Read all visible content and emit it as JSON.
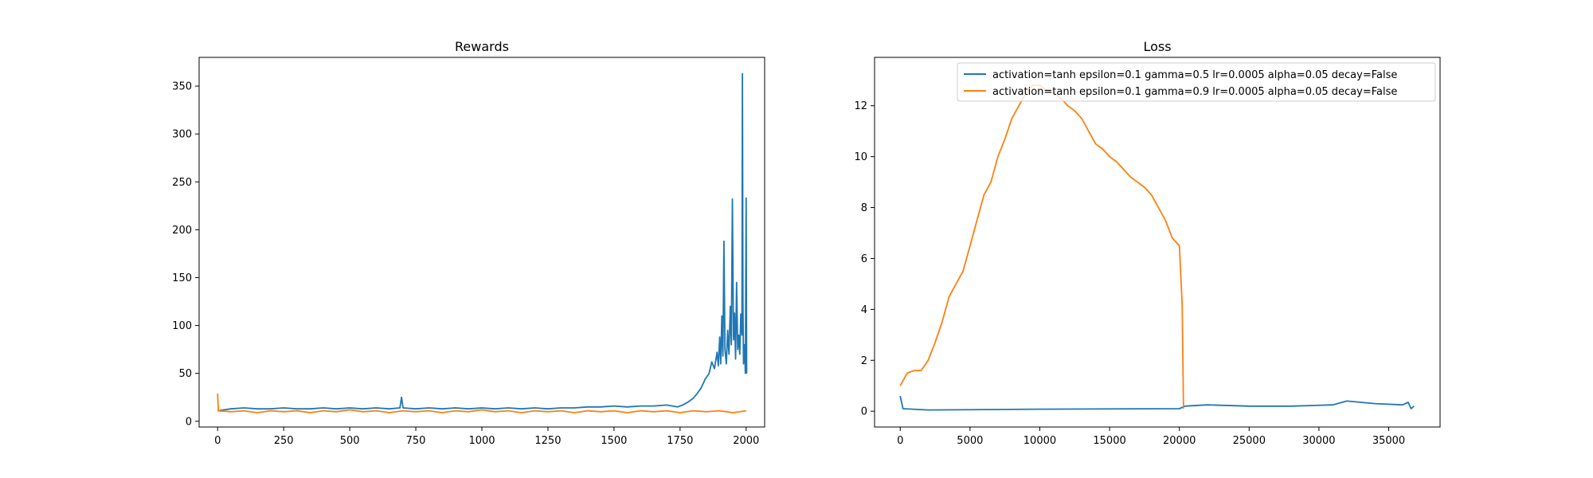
{
  "chart_data": [
    {
      "type": "line",
      "title": "Rewards",
      "xlabel": "",
      "ylabel": "",
      "xlim": [
        -70,
        2070
      ],
      "ylim": [
        -6,
        380
      ],
      "xticks": [
        0,
        250,
        500,
        750,
        1000,
        1250,
        1500,
        1750,
        2000
      ],
      "yticks": [
        0,
        50,
        100,
        150,
        200,
        250,
        300,
        350
      ],
      "grid": false,
      "series": [
        {
          "color": "#1f77b4",
          "points": [
            [
              0,
              11
            ],
            [
              50,
              13
            ],
            [
              100,
              14
            ],
            [
              150,
              13
            ],
            [
              200,
              13
            ],
            [
              250,
              14
            ],
            [
              300,
              13
            ],
            [
              350,
              13
            ],
            [
              400,
              14
            ],
            [
              450,
              13
            ],
            [
              500,
              14
            ],
            [
              550,
              13
            ],
            [
              600,
              14
            ],
            [
              650,
              13
            ],
            [
              690,
              14
            ],
            [
              696,
              25
            ],
            [
              702,
              14
            ],
            [
              750,
              13
            ],
            [
              800,
              14
            ],
            [
              850,
              13
            ],
            [
              900,
              14
            ],
            [
              950,
              13
            ],
            [
              1000,
              14
            ],
            [
              1050,
              13
            ],
            [
              1100,
              14
            ],
            [
              1150,
              13
            ],
            [
              1200,
              14
            ],
            [
              1250,
              13
            ],
            [
              1300,
              14
            ],
            [
              1350,
              14
            ],
            [
              1400,
              15
            ],
            [
              1450,
              15
            ],
            [
              1500,
              16
            ],
            [
              1550,
              15
            ],
            [
              1600,
              16
            ],
            [
              1650,
              16
            ],
            [
              1700,
              17
            ],
            [
              1740,
              15
            ],
            [
              1760,
              17
            ],
            [
              1780,
              20
            ],
            [
              1800,
              24
            ],
            [
              1815,
              29
            ],
            [
              1830,
              35
            ],
            [
              1845,
              44
            ],
            [
              1860,
              50
            ],
            [
              1870,
              62
            ],
            [
              1880,
              55
            ],
            [
              1890,
              72
            ],
            [
              1895,
              58
            ],
            [
              1900,
              88
            ],
            [
              1904,
              60
            ],
            [
              1908,
              110
            ],
            [
              1912,
              68
            ],
            [
              1916,
              188
            ],
            [
              1920,
              75
            ],
            [
              1925,
              60
            ],
            [
              1930,
              95
            ],
            [
              1935,
              70
            ],
            [
              1940,
              120
            ],
            [
              1944,
              80
            ],
            [
              1948,
              232
            ],
            [
              1952,
              85
            ],
            [
              1956,
              113
            ],
            [
              1960,
              65
            ],
            [
              1964,
              145
            ],
            [
              1968,
              75
            ],
            [
              1972,
              90
            ],
            [
              1976,
              70
            ],
            [
              1980,
              112
            ],
            [
              1984,
              90
            ],
            [
              1986,
              363
            ],
            [
              1988,
              120
            ],
            [
              1990,
              60
            ],
            [
              1994,
              80
            ],
            [
              1997,
              50
            ],
            [
              2000,
              233
            ],
            [
              2002,
              50
            ]
          ]
        },
        {
          "color": "#ff7f0e",
          "points": [
            [
              0,
              29
            ],
            [
              3,
              11
            ],
            [
              50,
              10
            ],
            [
              100,
              11
            ],
            [
              150,
              9
            ],
            [
              200,
              11
            ],
            [
              250,
              10
            ],
            [
              300,
              11
            ],
            [
              350,
              9
            ],
            [
              400,
              11
            ],
            [
              450,
              10
            ],
            [
              500,
              12
            ],
            [
              550,
              10
            ],
            [
              600,
              11
            ],
            [
              650,
              9
            ],
            [
              700,
              11
            ],
            [
              750,
              10
            ],
            [
              800,
              11
            ],
            [
              850,
              9
            ],
            [
              900,
              11
            ],
            [
              950,
              10
            ],
            [
              1000,
              12
            ],
            [
              1050,
              10
            ],
            [
              1100,
              11
            ],
            [
              1150,
              9
            ],
            [
              1200,
              11
            ],
            [
              1250,
              10
            ],
            [
              1300,
              11
            ],
            [
              1350,
              9
            ],
            [
              1400,
              11
            ],
            [
              1450,
              10
            ],
            [
              1500,
              11
            ],
            [
              1550,
              9
            ],
            [
              1600,
              11
            ],
            [
              1650,
              10
            ],
            [
              1700,
              11
            ],
            [
              1750,
              9
            ],
            [
              1800,
              11
            ],
            [
              1850,
              10
            ],
            [
              1900,
              11
            ],
            [
              1950,
              9
            ],
            [
              2000,
              11
            ]
          ]
        }
      ]
    },
    {
      "type": "line",
      "title": "Loss",
      "xlabel": "",
      "ylabel": "",
      "xlim": [
        -1840,
        38680
      ],
      "ylim": [
        -0.62,
        13.9
      ],
      "xticks": [
        0,
        5000,
        10000,
        15000,
        20000,
        25000,
        30000,
        35000
      ],
      "yticks": [
        0,
        2,
        4,
        6,
        8,
        10,
        12
      ],
      "grid": false,
      "legend": {
        "position": "top-right",
        "entries": [
          {
            "label": "activation=tanh epsilon=0.1 gamma=0.5 lr=0.0005 alpha=0.05 decay=False",
            "color": "#1f77b4"
          },
          {
            "label": "activation=tanh epsilon=0.1 gamma=0.9 lr=0.0005 alpha=0.05 decay=False",
            "color": "#ff7f0e"
          }
        ]
      },
      "series": [
        {
          "color": "#1f77b4",
          "points": [
            [
              0,
              0.6
            ],
            [
              200,
              0.1
            ],
            [
              2000,
              0.05
            ],
            [
              10000,
              0.08
            ],
            [
              20000,
              0.1
            ],
            [
              20400,
              0.2
            ],
            [
              22000,
              0.25
            ],
            [
              25000,
              0.2
            ],
            [
              28000,
              0.2
            ],
            [
              31000,
              0.25
            ],
            [
              32000,
              0.4
            ],
            [
              34000,
              0.3
            ],
            [
              36000,
              0.25
            ],
            [
              36400,
              0.35
            ],
            [
              36600,
              0.1
            ],
            [
              36800,
              0.2
            ]
          ]
        },
        {
          "color": "#ff7f0e",
          "points": [
            [
              0,
              1.0
            ],
            [
              500,
              1.5
            ],
            [
              1000,
              1.6
            ],
            [
              1500,
              1.6
            ],
            [
              2000,
              2.0
            ],
            [
              2500,
              2.7
            ],
            [
              3000,
              3.5
            ],
            [
              3500,
              4.5
            ],
            [
              4000,
              5.0
            ],
            [
              4500,
              5.5
            ],
            [
              5000,
              6.5
            ],
            [
              5500,
              7.5
            ],
            [
              6000,
              8.5
            ],
            [
              6500,
              9.0
            ],
            [
              7000,
              10.0
            ],
            [
              7500,
              10.7
            ],
            [
              8000,
              11.5
            ],
            [
              8500,
              12.0
            ],
            [
              9000,
              12.5
            ],
            [
              9500,
              12.8
            ],
            [
              10000,
              12.8
            ],
            [
              10500,
              12.6
            ],
            [
              11000,
              12.5
            ],
            [
              11500,
              12.3
            ],
            [
              12000,
              12.0
            ],
            [
              12500,
              11.8
            ],
            [
              13000,
              11.5
            ],
            [
              13500,
              11.0
            ],
            [
              14000,
              10.5
            ],
            [
              14500,
              10.3
            ],
            [
              15000,
              10.0
            ],
            [
              15500,
              9.8
            ],
            [
              16000,
              9.5
            ],
            [
              16500,
              9.2
            ],
            [
              17000,
              9.0
            ],
            [
              17500,
              8.8
            ],
            [
              18000,
              8.5
            ],
            [
              18500,
              8.0
            ],
            [
              19000,
              7.5
            ],
            [
              19500,
              6.8
            ],
            [
              20000,
              6.5
            ],
            [
              20200,
              4.2
            ],
            [
              20300,
              0.1
            ]
          ]
        }
      ]
    }
  ]
}
